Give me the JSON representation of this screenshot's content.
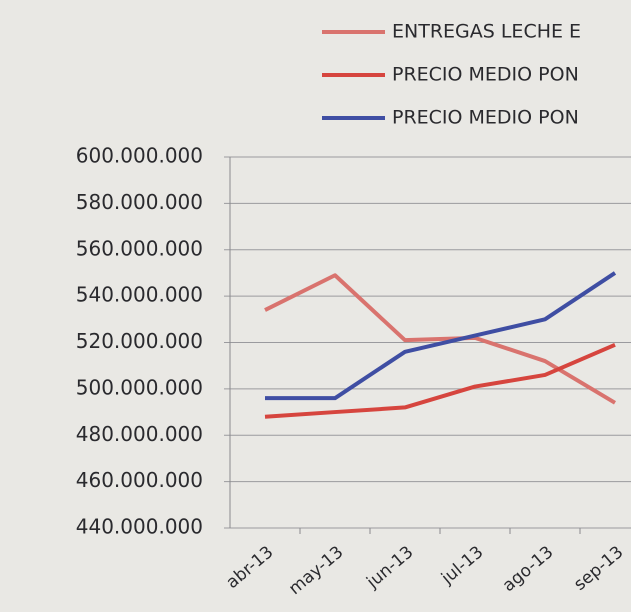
{
  "chart_data": {
    "type": "line",
    "categories": [
      "abr-13",
      "may-13",
      "jun-13",
      "jul-13",
      "ago-13",
      "sep-13"
    ],
    "series": [
      {
        "name": "ENTREGAS LECHE E",
        "color": "#d9736e",
        "values": [
          534000000,
          549000000,
          521000000,
          522000000,
          512000000,
          494000000
        ]
      },
      {
        "name": "PRECIO MEDIO PON",
        "color": "#d6453e",
        "values": [
          488000000,
          490000000,
          492000000,
          501000000,
          506000000,
          519000000
        ]
      },
      {
        "name": "PRECIO MEDIO PON",
        "color": "#3f4ea3",
        "values": [
          496000000,
          496000000,
          516000000,
          523000000,
          530000000,
          550000000
        ]
      }
    ],
    "ylim": [
      440000000,
      600000000
    ],
    "yticks": [
      {
        "value": 440000000,
        "label": "440.000.000"
      },
      {
        "value": 460000000,
        "label": "460.000.000"
      },
      {
        "value": 480000000,
        "label": "480.000.000"
      },
      {
        "value": 500000000,
        "label": "500.000.000"
      },
      {
        "value": 520000000,
        "label": "520.000.000"
      },
      {
        "value": 540000000,
        "label": "540.000.000"
      },
      {
        "value": 560000000,
        "label": "560.000.000"
      },
      {
        "value": 580000000,
        "label": "580.000.000"
      },
      {
        "value": 600000000,
        "label": "600.000.000"
      }
    ],
    "grid": true,
    "legend": "top-right"
  }
}
